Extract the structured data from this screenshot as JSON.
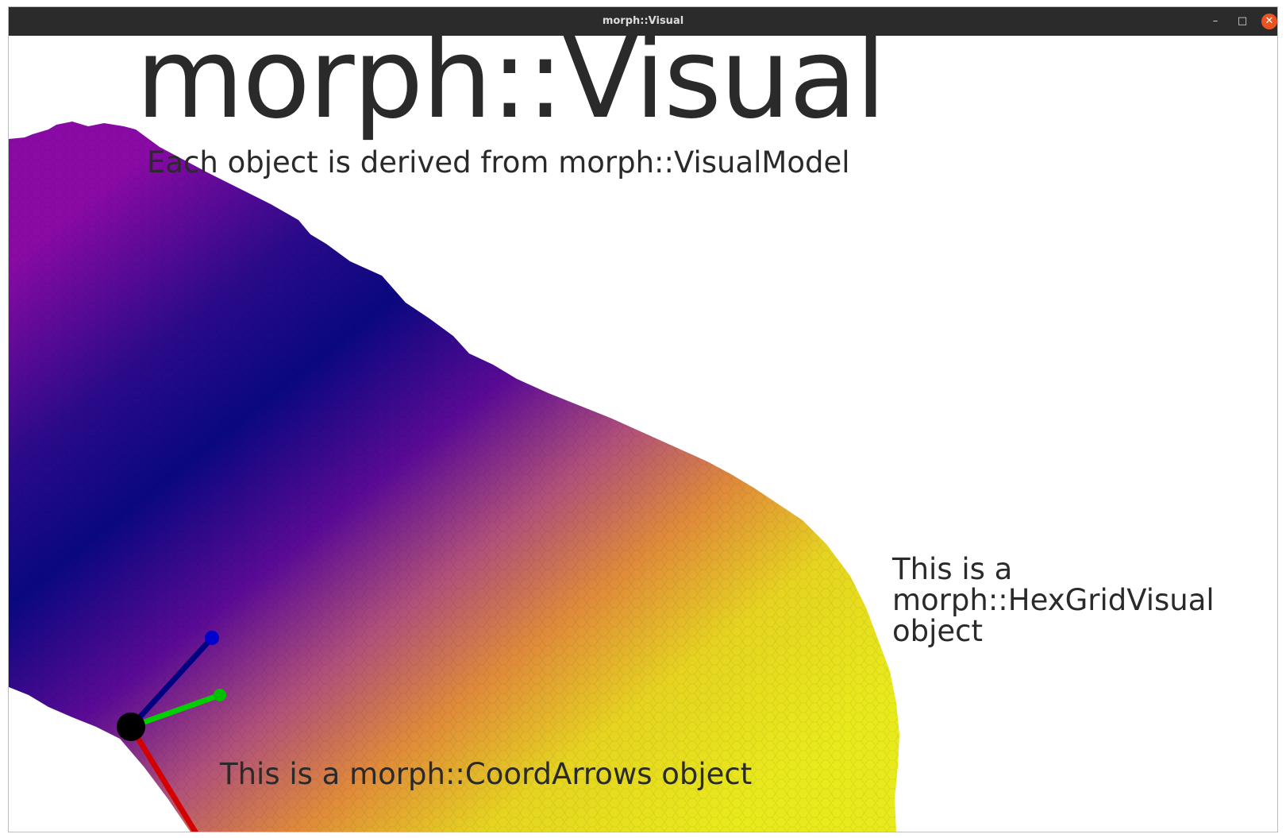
{
  "window": {
    "title": "morph::Visual",
    "controls": {
      "minimize": "–",
      "maximize": "□",
      "close": "✕"
    }
  },
  "scene": {
    "title": "morph::Visual",
    "subtitle": "Each object is derived from morph::VisualModel",
    "hexgrid_label": "This is a morph::HexGridVisual object",
    "coordarrows_label": "This is a morph::CoordArrows object",
    "colors": {
      "surface_gradient": [
        "#7a0aa0",
        "#120a7a",
        "#0a0880",
        "#5a0a96",
        "#b0507a",
        "#e08a3a",
        "#e6d420",
        "#e8ea1c"
      ],
      "x_axis": "#d40000",
      "y_axis": "#00d000",
      "z_axis": "#000080",
      "origin": "#000000"
    },
    "icons": {
      "minimize": "minimize-icon",
      "maximize": "maximize-icon",
      "close": "close-icon"
    }
  }
}
